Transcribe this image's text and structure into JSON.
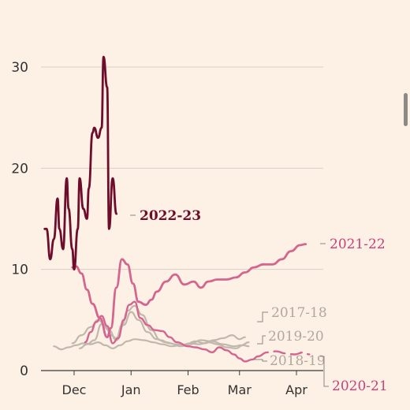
{
  "chart_data": {
    "type": "line",
    "title": "",
    "xlabel": "",
    "ylabel": "",
    "ylim": [
      0,
      31
    ],
    "grid": true,
    "y_ticks": [
      0,
      10,
      20,
      30
    ],
    "x_ticks": [
      {
        "label": "Dec",
        "x": "Dec 1"
      },
      {
        "label": "Jan",
        "x": "Jan 1"
      },
      {
        "label": "Feb",
        "x": "Feb 1"
      },
      {
        "label": "Mar",
        "x": "Mar 1"
      },
      {
        "label": "Apr",
        "x": "Apr 1"
      }
    ],
    "series": [
      {
        "name": "2022-23",
        "color": "#6e0c2b",
        "stroke": 2.8,
        "x": [
          "Nov 15",
          "Nov 16",
          "Nov 18",
          "Nov 20",
          "Nov 22",
          "Nov 23",
          "Nov 25",
          "Nov 27",
          "Nov 28",
          "Nov 30",
          "Dec 1",
          "Dec 3",
          "Dec 4",
          "Dec 6",
          "Dec 8",
          "Dec 9",
          "Dec 11",
          "Dec 12",
          "Dec 14",
          "Dec 16",
          "Dec 17",
          "Dec 19",
          "Dec 20",
          "Dec 22",
          "Dec 24",
          "Dec 25",
          "Dec 26",
          "Dec 27"
        ],
        "values": [
          14,
          14,
          11,
          13,
          17,
          14,
          12,
          19,
          16,
          12,
          10,
          14,
          19,
          16,
          15,
          18,
          23.5,
          24,
          23,
          24,
          31,
          28,
          14,
          19,
          15.5,
          null,
          null,
          null
        ]
      },
      {
        "name": "2021-22",
        "color": "#d4658f",
        "stroke": 2.8,
        "x": [
          "Nov 30",
          "Dec 2",
          "Dec 5",
          "Dec 8",
          "Dec 11",
          "Dec 15",
          "Dec 19",
          "Dec 21",
          "Dec 24",
          "Dec 27",
          "Dec 30",
          "Jan 2",
          "Jan 5",
          "Jan 9",
          "Jan 12",
          "Jan 15",
          "Jan 20",
          "Jan 25",
          "Jan 30",
          "Feb 4",
          "Feb 8",
          "Feb 12",
          "Feb 17",
          "Feb 22",
          "Feb 27",
          "Mar 4",
          "Mar 9",
          "Mar 14",
          "Mar 19",
          "Mar 24",
          "Mar 29",
          "Apr 3",
          "Apr 6"
        ],
        "values": [
          10.2,
          10.3,
          9.6,
          8,
          6.6,
          5.2,
          3.3,
          4.2,
          8.2,
          11,
          10.5,
          8.6,
          6.8,
          6.5,
          7,
          7.8,
          8.8,
          9.5,
          8.5,
          8.8,
          8.2,
          8.8,
          9,
          9,
          9.2,
          9.7,
          10.2,
          10.5,
          10.5,
          11,
          11.8,
          12.4,
          12.5
        ]
      },
      {
        "name": "2020-21",
        "color": "#d4658f",
        "stroke": 2.4,
        "x": [
          "Dec 7",
          "Dec 10",
          "Dec 13",
          "Dec 16",
          "Dec 19",
          "Dec 22",
          "Dec 25",
          "Dec 28",
          "Dec 31",
          "Jan 3",
          "Jan 6",
          "Jan 10",
          "Jan 14",
          "Jan 18",
          "Jan 22",
          "Jan 26",
          "Feb 1",
          "Feb 5",
          "Feb 10",
          "Feb 14",
          "Feb 18",
          "Feb 22",
          "Feb 26",
          "Mar 1",
          "Mar 4",
          "Mar 8",
          "Mar 11"
        ],
        "values": [
          2.8,
          3.8,
          4.8,
          5.4,
          4.4,
          2.7,
          3.2,
          5,
          6.5,
          6.8,
          5.2,
          4.5,
          4,
          3.9,
          3.3,
          2.8,
          2.4,
          2.3,
          2.1,
          1.8,
          2.3,
          2.0,
          1.6,
          1.2,
          0.9,
          1.1,
          1.4
        ],
        "dashed_tail": {
          "x": [
            "Mar 11",
            "Mar 16",
            "Mar 21",
            "Mar 26",
            "Mar 31",
            "Apr 5",
            "Apr 8"
          ],
          "values": [
            1.4,
            1.8,
            1.9,
            1.7,
            1.6,
            1.8,
            1.6
          ]
        }
      },
      {
        "name": "2017-18",
        "color": "#c1b8ad",
        "stroke": 2.2,
        "x": [
          "Nov 30",
          "Dec 5",
          "Dec 10",
          "Dec 14",
          "Dec 18",
          "Dec 21",
          "Dec 24",
          "Dec 27",
          "Dec 30",
          "Jan 3",
          "Jan 7",
          "Jan 12",
          "Jan 17",
          "Jan 22",
          "Jan 28",
          "Feb 2",
          "Feb 8",
          "Feb 14",
          "Feb 20",
          "Feb 26",
          "Mar 2",
          "Mar 6"
        ],
        "values": [
          2.7,
          3.5,
          4.3,
          5.0,
          4.5,
          3.5,
          3.2,
          4.5,
          5.9,
          6.4,
          5.5,
          4.0,
          3.0,
          2.7,
          2.4,
          2.6,
          3.0,
          2.9,
          2.6,
          2.4,
          2.5,
          2.8
        ]
      },
      {
        "name": "2019-20",
        "color": "#c1b8ad",
        "stroke": 2.2,
        "x": [
          "Dec 4",
          "Dec 8",
          "Dec 12",
          "Dec 16",
          "Dec 20",
          "Dec 24",
          "Dec 28",
          "Jan 1",
          "Jan 5",
          "Jan 10",
          "Jan 15",
          "Jan 20",
          "Jan 25",
          "Jan 30",
          "Feb 5",
          "Feb 10",
          "Feb 15",
          "Feb 20",
          "Feb 25",
          "Mar 1",
          "Mar 4"
        ],
        "values": [
          2.2,
          2.6,
          3.0,
          4.6,
          4.0,
          3.0,
          4.5,
          5.8,
          5.0,
          3.8,
          3.1,
          2.8,
          2.6,
          2.5,
          2.9,
          2.7,
          3.0,
          3.2,
          3.5,
          3.1,
          3.3
        ]
      },
      {
        "name": "2018-19",
        "color": "#c1b8ad",
        "stroke": 2.2,
        "x": [
          "Nov 20",
          "Nov 24",
          "Nov 28",
          "Dec 2",
          "Dec 6",
          "Dec 10",
          "Dec 14",
          "Dec 18",
          "Dec 22",
          "Dec 26",
          "Dec 30",
          "Jan 3",
          "Jan 8",
          "Jan 13",
          "Jan 18",
          "Jan 23",
          "Jan 28",
          "Feb 2",
          "Feb 7",
          "Feb 12",
          "Feb 17",
          "Feb 22",
          "Feb 27",
          "Mar 3",
          "Mar 6"
        ],
        "values": [
          2.4,
          2.1,
          2.3,
          2.5,
          2.7,
          2.6,
          2.8,
          2.5,
          2.2,
          2.5,
          2.9,
          3.1,
          3.0,
          2.8,
          2.6,
          2.4,
          2.5,
          2.7,
          2.6,
          2.8,
          2.6,
          2.3,
          2.2,
          2.5,
          2.4
        ]
      }
    ],
    "labels": [
      {
        "text": "2022-23",
        "color": "#6e0c2b",
        "bold": true
      },
      {
        "text": "2021-22",
        "color": "#c9407a",
        "bold": false
      },
      {
        "text": "2017-18",
        "color": "#b0a79d",
        "bold": false
      },
      {
        "text": "2019-20",
        "color": "#b0a79d",
        "bold": false
      },
      {
        "text": "2018-19",
        "color": "#b0a79d",
        "bold": false
      },
      {
        "text": "2020-21",
        "color": "#c9407a",
        "bold": false
      }
    ],
    "colors": {
      "background": "#fdf1e6",
      "grid": "#d7cfc7",
      "axis": "#3a3a3a",
      "tick_text": "#333333"
    }
  }
}
